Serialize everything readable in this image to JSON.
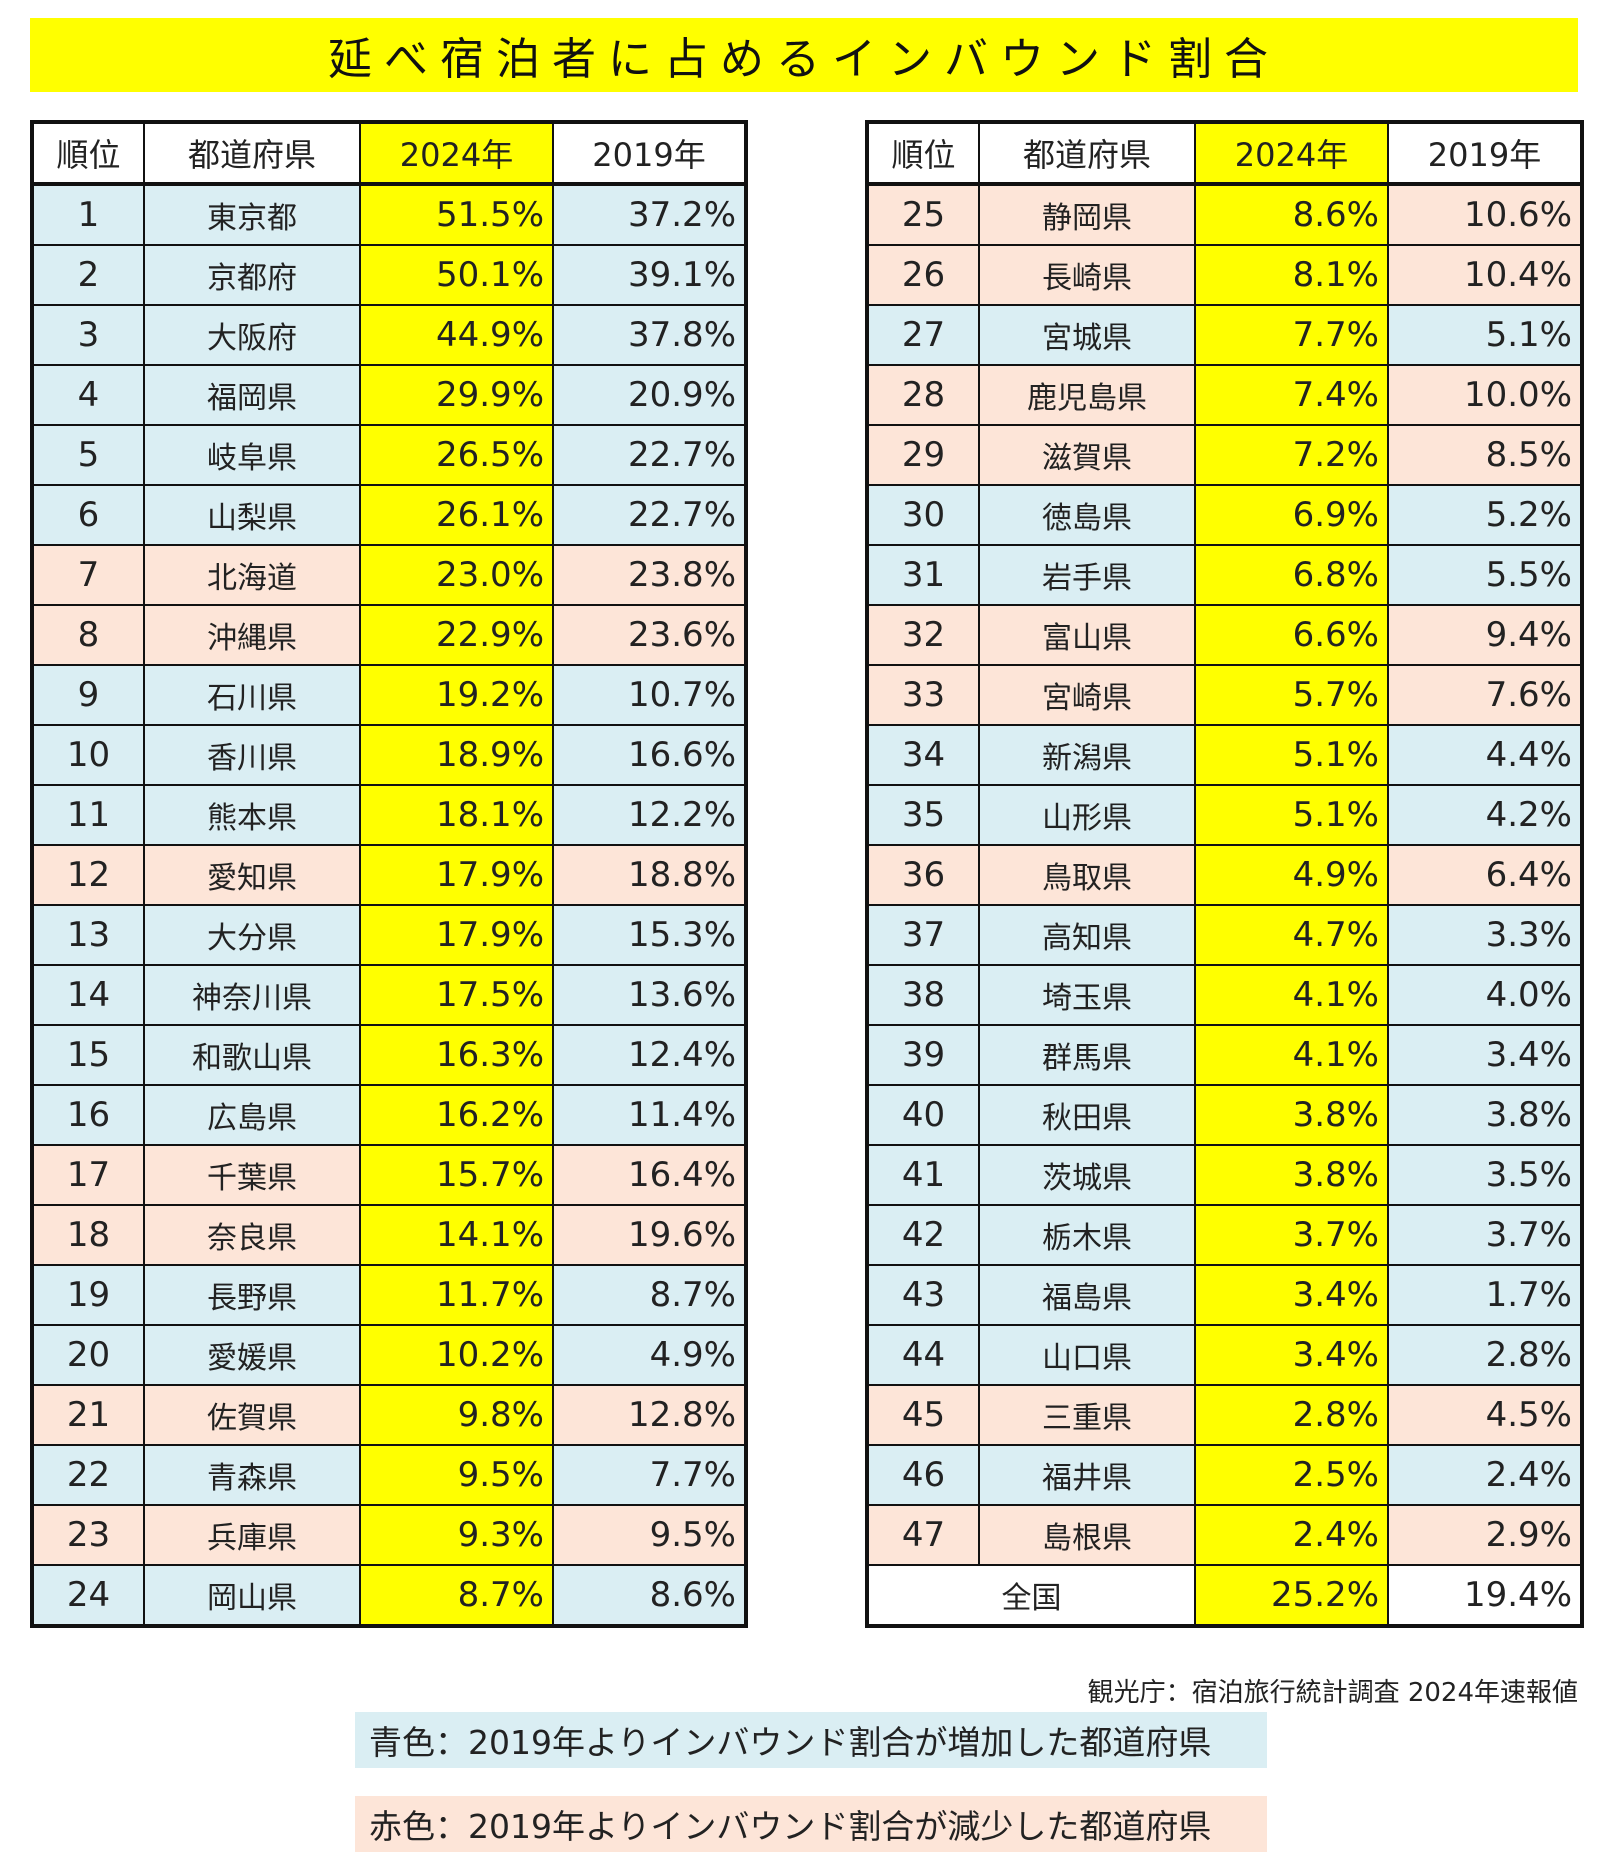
{
  "title": "延べ宿泊者に占めるインバウンド割合",
  "headers": {
    "rank": "順位",
    "prefecture": "都道府県",
    "y2024": "2024年",
    "y2019": "2019年"
  },
  "source": "観光庁：宿泊旅行統計調査 2024年速報値",
  "legend": {
    "increased": "青色：2019年よりインバウンド割合が増加した都道府県",
    "decreased": "赤色：2019年よりインバウンド割合が減少した都道府県"
  },
  "colors": {
    "increased": "#daeef3",
    "decreased": "#fde5d8",
    "highlight": "#ffff00"
  },
  "total": {
    "label": "全国",
    "y2024": "25.2%",
    "y2019": "19.4%"
  },
  "chart_data": {
    "type": "table",
    "title": "延べ宿泊者に占めるインバウンド割合",
    "columns": [
      "順位",
      "都道府県",
      "2024年",
      "2019年"
    ],
    "rows": [
      {
        "rank": "1",
        "pref": "東京都",
        "y2024": "51.5%",
        "y2019": "37.2%",
        "trend": "increased"
      },
      {
        "rank": "2",
        "pref": "京都府",
        "y2024": "50.1%",
        "y2019": "39.1%",
        "trend": "increased"
      },
      {
        "rank": "3",
        "pref": "大阪府",
        "y2024": "44.9%",
        "y2019": "37.8%",
        "trend": "increased"
      },
      {
        "rank": "4",
        "pref": "福岡県",
        "y2024": "29.9%",
        "y2019": "20.9%",
        "trend": "increased"
      },
      {
        "rank": "5",
        "pref": "岐阜県",
        "y2024": "26.5%",
        "y2019": "22.7%",
        "trend": "increased"
      },
      {
        "rank": "6",
        "pref": "山梨県",
        "y2024": "26.1%",
        "y2019": "22.7%",
        "trend": "increased"
      },
      {
        "rank": "7",
        "pref": "北海道",
        "y2024": "23.0%",
        "y2019": "23.8%",
        "trend": "decreased"
      },
      {
        "rank": "8",
        "pref": "沖縄県",
        "y2024": "22.9%",
        "y2019": "23.6%",
        "trend": "decreased"
      },
      {
        "rank": "9",
        "pref": "石川県",
        "y2024": "19.2%",
        "y2019": "10.7%",
        "trend": "increased"
      },
      {
        "rank": "10",
        "pref": "香川県",
        "y2024": "18.9%",
        "y2019": "16.6%",
        "trend": "increased"
      },
      {
        "rank": "11",
        "pref": "熊本県",
        "y2024": "18.1%",
        "y2019": "12.2%",
        "trend": "increased"
      },
      {
        "rank": "12",
        "pref": "愛知県",
        "y2024": "17.9%",
        "y2019": "18.8%",
        "trend": "decreased"
      },
      {
        "rank": "13",
        "pref": "大分県",
        "y2024": "17.9%",
        "y2019": "15.3%",
        "trend": "increased"
      },
      {
        "rank": "14",
        "pref": "神奈川県",
        "y2024": "17.5%",
        "y2019": "13.6%",
        "trend": "increased"
      },
      {
        "rank": "15",
        "pref": "和歌山県",
        "y2024": "16.3%",
        "y2019": "12.4%",
        "trend": "increased"
      },
      {
        "rank": "16",
        "pref": "広島県",
        "y2024": "16.2%",
        "y2019": "11.4%",
        "trend": "increased"
      },
      {
        "rank": "17",
        "pref": "千葉県",
        "y2024": "15.7%",
        "y2019": "16.4%",
        "trend": "decreased"
      },
      {
        "rank": "18",
        "pref": "奈良県",
        "y2024": "14.1%",
        "y2019": "19.6%",
        "trend": "decreased"
      },
      {
        "rank": "19",
        "pref": "長野県",
        "y2024": "11.7%",
        "y2019": "8.7%",
        "trend": "increased"
      },
      {
        "rank": "20",
        "pref": "愛媛県",
        "y2024": "10.2%",
        "y2019": "4.9%",
        "trend": "increased"
      },
      {
        "rank": "21",
        "pref": "佐賀県",
        "y2024": "9.8%",
        "y2019": "12.8%",
        "trend": "decreased"
      },
      {
        "rank": "22",
        "pref": "青森県",
        "y2024": "9.5%",
        "y2019": "7.7%",
        "trend": "increased"
      },
      {
        "rank": "23",
        "pref": "兵庫県",
        "y2024": "9.3%",
        "y2019": "9.5%",
        "trend": "decreased"
      },
      {
        "rank": "24",
        "pref": "岡山県",
        "y2024": "8.7%",
        "y2019": "8.6%",
        "trend": "increased"
      },
      {
        "rank": "25",
        "pref": "静岡県",
        "y2024": "8.6%",
        "y2019": "10.6%",
        "trend": "decreased"
      },
      {
        "rank": "26",
        "pref": "長崎県",
        "y2024": "8.1%",
        "y2019": "10.4%",
        "trend": "decreased"
      },
      {
        "rank": "27",
        "pref": "宮城県",
        "y2024": "7.7%",
        "y2019": "5.1%",
        "trend": "increased"
      },
      {
        "rank": "28",
        "pref": "鹿児島県",
        "y2024": "7.4%",
        "y2019": "10.0%",
        "trend": "decreased"
      },
      {
        "rank": "29",
        "pref": "滋賀県",
        "y2024": "7.2%",
        "y2019": "8.5%",
        "trend": "decreased"
      },
      {
        "rank": "30",
        "pref": "徳島県",
        "y2024": "6.9%",
        "y2019": "5.2%",
        "trend": "increased"
      },
      {
        "rank": "31",
        "pref": "岩手県",
        "y2024": "6.8%",
        "y2019": "5.5%",
        "trend": "increased"
      },
      {
        "rank": "32",
        "pref": "富山県",
        "y2024": "6.6%",
        "y2019": "9.4%",
        "trend": "decreased"
      },
      {
        "rank": "33",
        "pref": "宮崎県",
        "y2024": "5.7%",
        "y2019": "7.6%",
        "trend": "decreased"
      },
      {
        "rank": "34",
        "pref": "新潟県",
        "y2024": "5.1%",
        "y2019": "4.4%",
        "trend": "increased"
      },
      {
        "rank": "35",
        "pref": "山形県",
        "y2024": "5.1%",
        "y2019": "4.2%",
        "trend": "increased"
      },
      {
        "rank": "36",
        "pref": "鳥取県",
        "y2024": "4.9%",
        "y2019": "6.4%",
        "trend": "decreased"
      },
      {
        "rank": "37",
        "pref": "高知県",
        "y2024": "4.7%",
        "y2019": "3.3%",
        "trend": "increased"
      },
      {
        "rank": "38",
        "pref": "埼玉県",
        "y2024": "4.1%",
        "y2019": "4.0%",
        "trend": "increased"
      },
      {
        "rank": "39",
        "pref": "群馬県",
        "y2024": "4.1%",
        "y2019": "3.4%",
        "trend": "increased"
      },
      {
        "rank": "40",
        "pref": "秋田県",
        "y2024": "3.8%",
        "y2019": "3.8%",
        "trend": "increased"
      },
      {
        "rank": "41",
        "pref": "茨城県",
        "y2024": "3.8%",
        "y2019": "3.5%",
        "trend": "increased"
      },
      {
        "rank": "42",
        "pref": "栃木県",
        "y2024": "3.7%",
        "y2019": "3.7%",
        "trend": "increased"
      },
      {
        "rank": "43",
        "pref": "福島県",
        "y2024": "3.4%",
        "y2019": "1.7%",
        "trend": "increased"
      },
      {
        "rank": "44",
        "pref": "山口県",
        "y2024": "3.4%",
        "y2019": "2.8%",
        "trend": "increased"
      },
      {
        "rank": "45",
        "pref": "三重県",
        "y2024": "2.8%",
        "y2019": "4.5%",
        "trend": "decreased"
      },
      {
        "rank": "46",
        "pref": "福井県",
        "y2024": "2.5%",
        "y2019": "2.4%",
        "trend": "increased"
      },
      {
        "rank": "47",
        "pref": "島根県",
        "y2024": "2.4%",
        "y2019": "2.9%",
        "trend": "decreased"
      }
    ]
  }
}
